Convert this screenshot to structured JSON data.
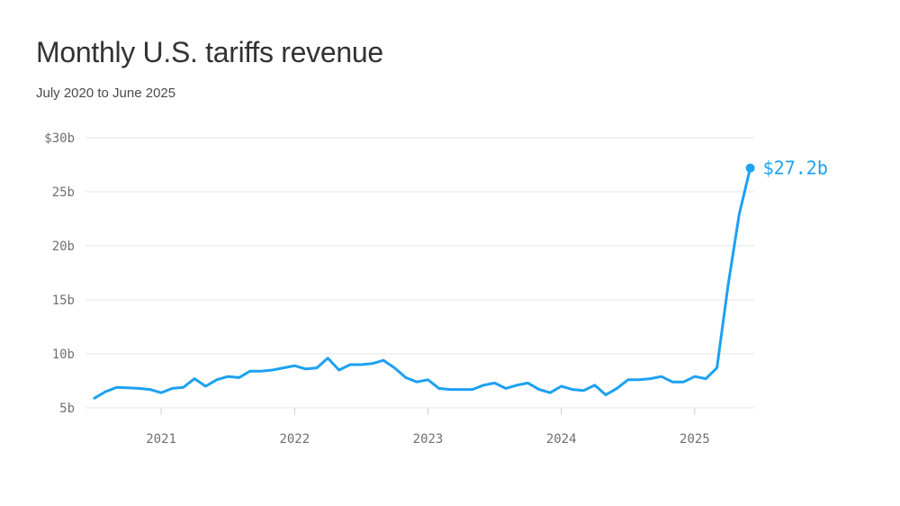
{
  "title": "Monthly U.S. tariffs revenue",
  "subtitle": "July 2020 to June 2025",
  "colors": {
    "line": "#1da1f2",
    "grid": "#e5e5e5",
    "axis_text": "#6f6f6f"
  },
  "chart_data": {
    "type": "line",
    "title": "Monthly U.S. tariffs revenue",
    "subtitle": "July 2020 to June 2025",
    "xlabel": "",
    "ylabel": "",
    "unit": "billions of dollars",
    "ylim": [
      5,
      30
    ],
    "y_ticks": [
      {
        "value": 30,
        "label": "$30b"
      },
      {
        "value": 25,
        "label": "25b"
      },
      {
        "value": 20,
        "label": "20b"
      },
      {
        "value": 15,
        "label": "15b"
      },
      {
        "value": 10,
        "label": "10b"
      },
      {
        "value": 5,
        "label": "5b"
      }
    ],
    "x_ticks": [
      {
        "date": "2021-01",
        "label": "2021"
      },
      {
        "date": "2022-01",
        "label": "2022"
      },
      {
        "date": "2023-01",
        "label": "2023"
      },
      {
        "date": "2024-01",
        "label": "2024"
      },
      {
        "date": "2025-01",
        "label": "2025"
      }
    ],
    "grid": true,
    "end_label": "$27.2b",
    "series": [
      {
        "x": [
          "2020-07",
          "2020-08",
          "2020-09",
          "2020-10",
          "2020-11",
          "2020-12",
          "2021-01",
          "2021-02",
          "2021-03",
          "2021-04",
          "2021-05",
          "2021-06",
          "2021-07",
          "2021-08",
          "2021-09",
          "2021-10",
          "2021-11",
          "2021-12",
          "2022-01",
          "2022-02",
          "2022-03",
          "2022-04",
          "2022-05",
          "2022-06",
          "2022-07",
          "2022-08",
          "2022-09",
          "2022-10",
          "2022-11",
          "2022-12",
          "2023-01",
          "2023-02",
          "2023-03",
          "2023-04",
          "2023-05",
          "2023-06",
          "2023-07",
          "2023-08",
          "2023-09",
          "2023-10",
          "2023-11",
          "2023-12",
          "2024-01",
          "2024-02",
          "2024-03",
          "2024-04",
          "2024-05",
          "2024-06",
          "2024-07",
          "2024-08",
          "2024-09",
          "2024-10",
          "2024-11",
          "2024-12",
          "2025-01",
          "2025-02",
          "2025-03",
          "2025-04",
          "2025-05",
          "2025-06"
        ],
        "values": [
          5.9,
          6.5,
          6.9,
          6.85,
          6.8,
          6.7,
          6.4,
          6.8,
          6.9,
          7.7,
          7.0,
          7.6,
          7.9,
          7.8,
          8.4,
          8.4,
          8.5,
          8.7,
          8.9,
          8.6,
          8.7,
          9.6,
          8.5,
          9.0,
          9.0,
          9.1,
          9.4,
          8.7,
          7.8,
          7.4,
          7.6,
          6.8,
          6.7,
          6.7,
          6.7,
          7.1,
          7.3,
          6.8,
          7.1,
          7.3,
          6.7,
          6.4,
          7.0,
          6.7,
          6.6,
          7.1,
          6.2,
          6.8,
          7.6,
          7.6,
          7.7,
          7.9,
          7.4,
          7.4,
          7.9,
          7.7,
          8.7,
          16.3,
          22.9,
          27.2
        ]
      }
    ]
  }
}
